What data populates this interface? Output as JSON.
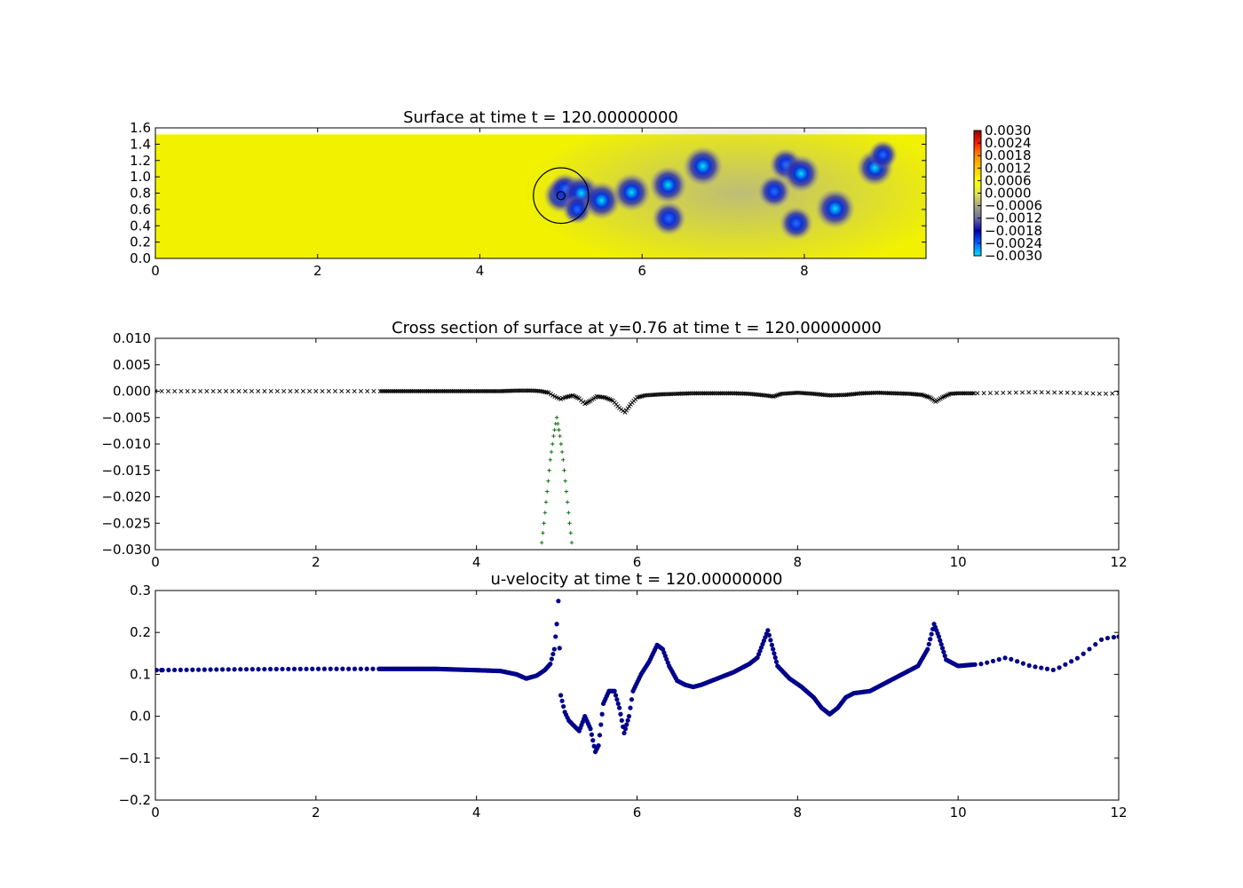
{
  "chart_data": [
    {
      "type": "heatmap",
      "title": "Surface at time t =   120.00000000",
      "xlim": [
        0,
        9.5
      ],
      "ylim": [
        0,
        1.6
      ],
      "xticks": [
        "0",
        "2",
        "4",
        "6",
        "8"
      ],
      "yticks": [
        "0.0",
        "0.2",
        "0.4",
        "0.6",
        "0.8",
        "1.0",
        "1.2",
        "1.4",
        "1.6"
      ],
      "field_extent": {
        "x": [
          0,
          9.5
        ],
        "y": [
          0,
          1.52
        ]
      },
      "colorbar": {
        "ticks": [
          "0.0030",
          "0.0024",
          "0.0018",
          "0.0012",
          "0.0006",
          "0.0000",
          "−0.0006",
          "−0.0012",
          "−0.0018",
          "−0.0024",
          "−0.0030"
        ],
        "range": [
          -0.003,
          0.003
        ],
        "colors": [
          "#00e5ff",
          "#0064ff",
          "#0000b4",
          "#6e6ea0",
          "#a8a880",
          "#e6e650",
          "#ffff00",
          "#ffc800",
          "#ff8c00",
          "#ff1e00",
          "#960000"
        ]
      },
      "background_color": "#f2f200",
      "dips": [
        {
          "x": 5.0,
          "y": 0.77,
          "depth": -0.0022
        },
        {
          "x": 5.05,
          "y": 0.85,
          "depth": -0.0018
        },
        {
          "x": 5.25,
          "y": 0.8,
          "depth": -0.0025
        },
        {
          "x": 5.2,
          "y": 0.6,
          "depth": -0.0015
        },
        {
          "x": 5.5,
          "y": 0.71,
          "depth": -0.0027
        },
        {
          "x": 5.87,
          "y": 0.81,
          "depth": -0.0027
        },
        {
          "x": 6.32,
          "y": 0.9,
          "depth": -0.0026
        },
        {
          "x": 6.33,
          "y": 0.49,
          "depth": -0.0021
        },
        {
          "x": 6.75,
          "y": 1.13,
          "depth": -0.0029
        },
        {
          "x": 7.63,
          "y": 0.82,
          "depth": -0.0019
        },
        {
          "x": 7.77,
          "y": 1.15,
          "depth": -0.0019
        },
        {
          "x": 7.96,
          "y": 1.04,
          "depth": -0.0026
        },
        {
          "x": 7.9,
          "y": 0.43,
          "depth": -0.002
        },
        {
          "x": 8.38,
          "y": 0.61,
          "depth": -0.0029
        },
        {
          "x": 8.87,
          "y": 1.11,
          "depth": -0.0025
        },
        {
          "x": 8.97,
          "y": 1.27,
          "depth": -0.0014
        }
      ],
      "circle": {
        "center": [
          5.0,
          0.77
        ],
        "radius": 0.34,
        "inner_radius": 0.05
      }
    },
    {
      "type": "scatter",
      "title": "Cross section of surface at y=0.76 at time t =   120.00000000",
      "xlim": [
        0,
        12
      ],
      "ylim": [
        -0.03,
        0.01
      ],
      "xticks": [
        "0",
        "2",
        "4",
        "6",
        "8",
        "10",
        "12"
      ],
      "yticks": [
        "0.010",
        "0.005",
        "0.000",
        "−0.005",
        "−0.010",
        "−0.015",
        "−0.020",
        "−0.025",
        "−0.030"
      ],
      "series": [
        {
          "marker": "x",
          "color": "#000000",
          "points": [
            [
              0.0,
              0.0
            ],
            [
              1.0,
              0.0
            ],
            [
              2.0,
              0.0
            ],
            [
              2.8,
              0.0
            ],
            [
              3.5,
              0.0
            ],
            [
              4.0,
              0.0
            ],
            [
              4.3,
              0.0
            ],
            [
              4.5,
              0.0001
            ],
            [
              4.7,
              0.0001
            ],
            [
              4.8,
              0.0
            ],
            [
              4.9,
              -0.0003
            ],
            [
              4.95,
              -0.0008
            ],
            [
              5.0,
              -0.0012
            ],
            [
              5.05,
              -0.0015
            ],
            [
              5.1,
              -0.0012
            ],
            [
              5.2,
              -0.0008
            ],
            [
              5.28,
              -0.0014
            ],
            [
              5.35,
              -0.0024
            ],
            [
              5.42,
              -0.0018
            ],
            [
              5.5,
              -0.001
            ],
            [
              5.6,
              -0.0012
            ],
            [
              5.7,
              -0.0018
            ],
            [
              5.78,
              -0.0032
            ],
            [
              5.85,
              -0.004
            ],
            [
              5.92,
              -0.0025
            ],
            [
              6.0,
              -0.0012
            ],
            [
              6.1,
              -0.0008
            ],
            [
              6.3,
              -0.0006
            ],
            [
              6.5,
              -0.0005
            ],
            [
              6.7,
              -0.0004
            ],
            [
              6.9,
              -0.0004
            ],
            [
              7.2,
              -0.0004
            ],
            [
              7.4,
              -0.0005
            ],
            [
              7.6,
              -0.0008
            ],
            [
              7.7,
              -0.001
            ],
            [
              7.8,
              -0.0005
            ],
            [
              8.0,
              -0.0003
            ],
            [
              8.2,
              -0.0005
            ],
            [
              8.4,
              -0.0008
            ],
            [
              8.6,
              -0.0007
            ],
            [
              8.8,
              -0.0004
            ],
            [
              9.0,
              -0.0003
            ],
            [
              9.2,
              -0.0004
            ],
            [
              9.4,
              -0.0005
            ],
            [
              9.55,
              -0.0007
            ],
            [
              9.65,
              -0.0012
            ],
            [
              9.72,
              -0.002
            ],
            [
              9.8,
              -0.0012
            ],
            [
              9.9,
              -0.0005
            ],
            [
              10.0,
              -0.0004
            ],
            [
              10.2,
              -0.0004
            ],
            [
              10.6,
              -0.0003
            ],
            [
              11.0,
              -0.0002
            ],
            [
              11.4,
              -0.0003
            ],
            [
              11.8,
              -0.0005
            ],
            [
              12.0,
              -0.0004
            ]
          ]
        },
        {
          "marker": "+",
          "color": "#006400",
          "points": [
            [
              4.8,
              -0.0305
            ],
            [
              4.84,
              -0.025
            ],
            [
              4.88,
              -0.019
            ],
            [
              4.92,
              -0.013
            ],
            [
              4.96,
              -0.0085
            ],
            [
              5.0,
              -0.005
            ],
            [
              5.04,
              -0.0085
            ],
            [
              5.08,
              -0.013
            ],
            [
              5.12,
              -0.019
            ],
            [
              5.16,
              -0.025
            ],
            [
              5.2,
              -0.0305
            ]
          ]
        }
      ]
    },
    {
      "type": "scatter",
      "title": "u-velocity at time t =   120.00000000",
      "xlim": [
        0,
        12
      ],
      "ylim": [
        -0.2,
        0.3
      ],
      "xticks": [
        "0",
        "2",
        "4",
        "6",
        "8",
        "10",
        "12"
      ],
      "yticks": [
        "0.3",
        "0.2",
        "0.1",
        "0.0",
        "−0.1",
        "−0.2"
      ],
      "series": [
        {
          "marker": "o",
          "color": "#00008b",
          "points": [
            [
              0.0,
              0.11
            ],
            [
              1.0,
              0.112
            ],
            [
              2.0,
              0.113
            ],
            [
              2.8,
              0.113
            ],
            [
              3.5,
              0.113
            ],
            [
              4.0,
              0.11
            ],
            [
              4.3,
              0.108
            ],
            [
              4.5,
              0.1
            ],
            [
              4.62,
              0.09
            ],
            [
              4.75,
              0.097
            ],
            [
              4.85,
              0.11
            ],
            [
              4.92,
              0.125
            ],
            [
              4.97,
              0.16
            ],
            [
              5.0,
              0.22
            ],
            [
              5.02,
              0.275
            ],
            [
              5.05,
              0.05
            ],
            [
              5.1,
              0.01
            ],
            [
              5.15,
              -0.01
            ],
            [
              5.2,
              -0.02
            ],
            [
              5.28,
              -0.035
            ],
            [
              5.35,
              0.0
            ],
            [
              5.42,
              -0.03
            ],
            [
              5.48,
              -0.085
            ],
            [
              5.52,
              -0.07
            ],
            [
              5.58,
              0.03
            ],
            [
              5.65,
              0.06
            ],
            [
              5.72,
              0.06
            ],
            [
              5.78,
              0.02
            ],
            [
              5.84,
              -0.04
            ],
            [
              5.9,
              0.0
            ],
            [
              5.95,
              0.06
            ],
            [
              6.05,
              0.1
            ],
            [
              6.15,
              0.13
            ],
            [
              6.25,
              0.17
            ],
            [
              6.32,
              0.16
            ],
            [
              6.4,
              0.12
            ],
            [
              6.5,
              0.085
            ],
            [
              6.6,
              0.075
            ],
            [
              6.7,
              0.07
            ],
            [
              6.8,
              0.075
            ],
            [
              7.0,
              0.09
            ],
            [
              7.2,
              0.105
            ],
            [
              7.4,
              0.125
            ],
            [
              7.5,
              0.14
            ],
            [
              7.58,
              0.18
            ],
            [
              7.63,
              0.205
            ],
            [
              7.68,
              0.17
            ],
            [
              7.75,
              0.12
            ],
            [
              7.9,
              0.09
            ],
            [
              8.05,
              0.07
            ],
            [
              8.2,
              0.045
            ],
            [
              8.3,
              0.02
            ],
            [
              8.4,
              0.005
            ],
            [
              8.5,
              0.02
            ],
            [
              8.6,
              0.045
            ],
            [
              8.7,
              0.055
            ],
            [
              8.9,
              0.06
            ],
            [
              9.1,
              0.08
            ],
            [
              9.3,
              0.1
            ],
            [
              9.5,
              0.12
            ],
            [
              9.62,
              0.16
            ],
            [
              9.7,
              0.22
            ],
            [
              9.76,
              0.19
            ],
            [
              9.85,
              0.135
            ],
            [
              10.0,
              0.12
            ],
            [
              10.3,
              0.125
            ],
            [
              10.6,
              0.14
            ],
            [
              10.9,
              0.12
            ],
            [
              11.2,
              0.11
            ],
            [
              11.5,
              0.14
            ],
            [
              11.8,
              0.185
            ],
            [
              12.0,
              0.19
            ]
          ]
        }
      ]
    }
  ]
}
